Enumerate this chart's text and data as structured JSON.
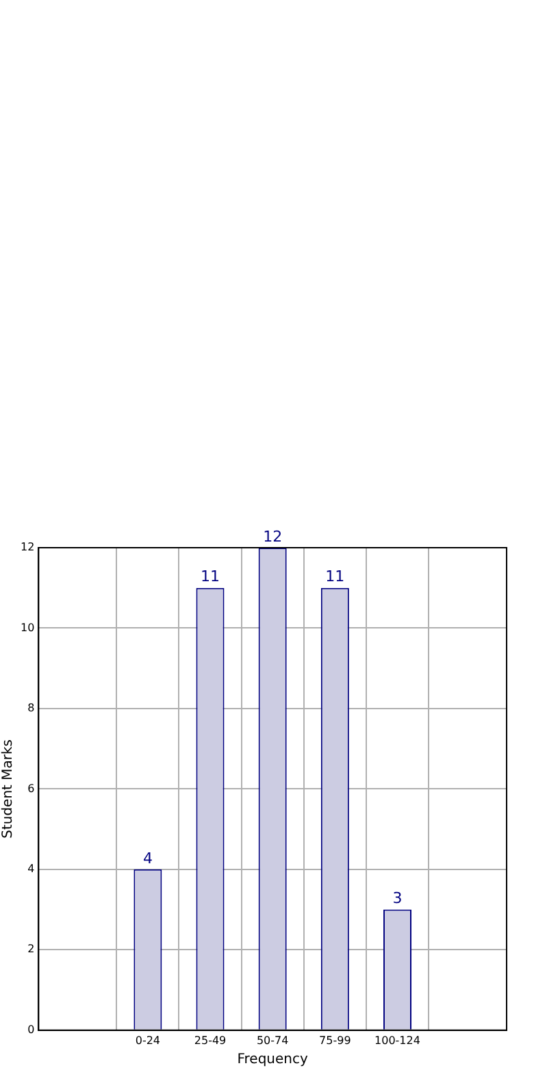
{
  "chart_data": {
    "type": "bar",
    "xlabel": "Frequency",
    "ylabel": "Student Marks",
    "categories": [
      "0-24",
      "25-49",
      "50-74",
      "75-99",
      "100-124"
    ],
    "series": [
      {
        "color": "#cccce2",
        "values": [
          4,
          11,
          12,
          11,
          3
        ]
      }
    ],
    "ylim": [
      0,
      12
    ],
    "yticks": [
      0,
      2,
      4,
      6,
      8,
      10,
      12
    ],
    "grid": true,
    "data_labels": true,
    "legend": false
  }
}
